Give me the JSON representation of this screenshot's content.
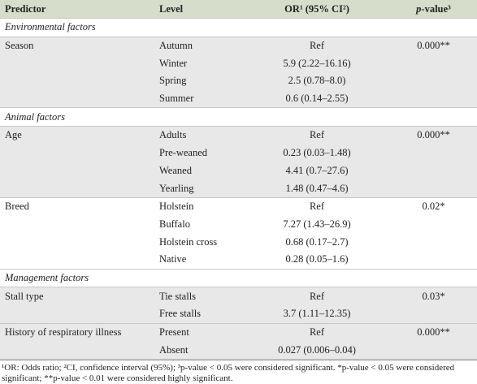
{
  "header": {
    "columns": [
      "Predictor",
      "Level",
      "OR¹ (95% CI²)",
      {
        "italic": "p",
        "rest": "-value³"
      }
    ]
  },
  "table": {
    "sections": [
      {
        "title": "Environmental factors",
        "groups": [
          {
            "predictor": "Season",
            "p_value": "0.000**",
            "shaded": true,
            "rows": [
              {
                "level": "Autumn",
                "or": "Ref"
              },
              {
                "level": "Winter",
                "or": "5.9 (2.22–16.16)"
              },
              {
                "level": "Spring",
                "or": "2.5 (0.78–8.0)"
              },
              {
                "level": "Summer",
                "or": "0.6 (0.14–2.55)"
              }
            ]
          }
        ]
      },
      {
        "title": "Animal factors",
        "groups": [
          {
            "predictor": "Age",
            "p_value": "0.000**",
            "shaded": true,
            "rows": [
              {
                "level": "Adults",
                "or": "Ref"
              },
              {
                "level": "Pre-weaned",
                "or": "0.23 (0.03–1.48)"
              },
              {
                "level": "Weaned",
                "or": "4.41 (0.7–27.6)"
              },
              {
                "level": "Yearling",
                "or": "1.48 (0.47–4.6)"
              }
            ]
          },
          {
            "predictor": "Breed",
            "p_value": "0.02*",
            "shaded": false,
            "rows": [
              {
                "level": "Holstein",
                "or": "Ref"
              },
              {
                "level": "Buffalo",
                "or": "7.27 (1.43–26.9)"
              },
              {
                "level": "Holstein cross",
                "or": "0.68 (0.17–2.7)"
              },
              {
                "level": "Native",
                "or": "0.28 (0.05–1.6)"
              }
            ]
          }
        ]
      },
      {
        "title": "Management factors",
        "groups": [
          {
            "predictor": "Stall type",
            "p_value": "0.03*",
            "shaded": true,
            "rows": [
              {
                "level": "Tie stalls",
                "or": "Ref"
              },
              {
                "level": "Free stalls",
                "or": "3.7 (1.11–12.35)"
              }
            ]
          },
          {
            "predictor": "History of respiratory illness",
            "p_value": "0.000**",
            "shaded": true,
            "rows": [
              {
                "level": "Present",
                "or": "Ref"
              },
              {
                "level": "Absent",
                "or": "0.027 (0.006–0.04)"
              }
            ]
          }
        ]
      }
    ]
  },
  "footnote": "¹OR: Odds ratio; ²CI, confidence interval (95%); ³p-value < 0.05 were considered significant. *p-value < 0.05 were considered significant; **p-value < 0.01 were considered highly significant."
}
